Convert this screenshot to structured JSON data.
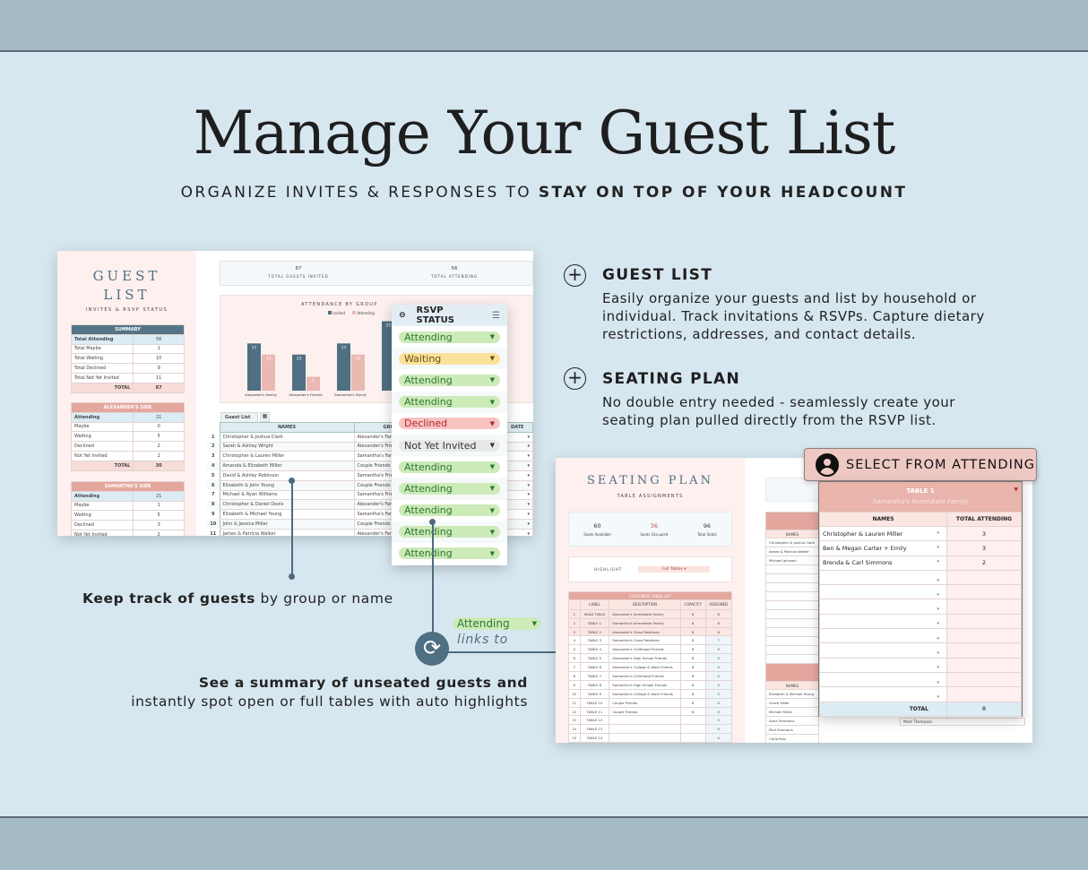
{
  "header": {
    "title": "Manage Your Guest List",
    "subtitle_plain": "ORGANIZE INVITES & RESPONSES TO ",
    "subtitle_bold": "STAY ON TOP OF YOUR HEADCOUNT"
  },
  "guest_list": {
    "title1": "GUEST",
    "title2": "LIST",
    "subtitle": "INVITES & RSVP STATUS",
    "summary": {
      "title": "SUMMARY",
      "rows": [
        [
          "Total Attending",
          "56"
        ],
        [
          "Total Maybe",
          "1"
        ],
        [
          "Total Waiting",
          "10"
        ],
        [
          "Total Declined",
          "9"
        ],
        [
          "Total Not Yet Invited",
          "11"
        ]
      ],
      "total_label": "TOTAL",
      "total": "87"
    },
    "alex": {
      "title": "ALEXANDER'S SIDE",
      "rows": [
        [
          "Attending",
          "21"
        ],
        [
          "Maybe",
          "0"
        ],
        [
          "Waiting",
          "5"
        ],
        [
          "Declined",
          "2"
        ],
        [
          "Not Yet Invited",
          "2"
        ]
      ],
      "total_label": "TOTAL",
      "total": "30"
    },
    "sam": {
      "title": "SAMANTHA'S SIDE",
      "rows": [
        [
          "Attending",
          "21"
        ],
        [
          "Maybe",
          "1"
        ],
        [
          "Waiting",
          "5"
        ],
        [
          "Declined",
          "3"
        ],
        [
          "Not Yet Invited",
          "2"
        ]
      ]
    },
    "kpi": [
      {
        "value": "87",
        "label": "TOTAL GUESTS INVITED"
      },
      {
        "value": "56",
        "label": "TOTAL ATTENDING"
      }
    ],
    "chart": {
      "title": "ATTENDANCE BY GROUP",
      "legend": [
        "Invited",
        "Attending"
      ],
      "colors": [
        "#4f6f82",
        "#eab9b2"
      ],
      "categories": [
        "Alexander's Family",
        "Alexander's Friends",
        "Samantha's Family",
        "Cou"
      ],
      "invited": [
        17,
        13,
        17,
        25
      ],
      "attending": [
        13,
        5,
        13,
        null
      ]
    },
    "tab": "Guest List",
    "columns": [
      "NAMES",
      "GROUP",
      "S",
      "DATE"
    ],
    "rows": [
      [
        "1",
        "Christopher & Joshua Clark",
        "Alexander's Family",
        "Ale"
      ],
      [
        "2",
        "Sarah & Ashley Wright",
        "Alexander's Friends",
        "Ale"
      ],
      [
        "3",
        "Christopher & Lauren Miller",
        "Samantha's Family",
        "Sam"
      ],
      [
        "4",
        "Amanda & Elizabeth Miller",
        "Couple Friends",
        "Cou"
      ],
      [
        "5",
        "David & Ashley Robinson",
        "Samantha's Friends",
        "Sam"
      ],
      [
        "6",
        "Elizabeth & John Young",
        "Couple Friends",
        "Cou"
      ],
      [
        "7",
        "Michael & Ryan Williams",
        "Samantha's Friends",
        "Sam"
      ],
      [
        "8",
        "Christopher & Daniel Davis",
        "Alexander's Family",
        "Ale"
      ],
      [
        "9",
        "Elizabeth & Michael Young",
        "Samantha's Family",
        "Sam"
      ],
      [
        "10",
        "John & Jessica Miller",
        "Couple Friends",
        "Cou"
      ],
      [
        "11",
        "James & Patricia Walker",
        "Alexander's Family",
        "Ale"
      ]
    ]
  },
  "rsvp": {
    "title": "RSVP STATUS",
    "items": [
      {
        "label": "Attending",
        "bg": "#cdeab9",
        "fg": "#2c7a2c"
      },
      {
        "label": "Waiting",
        "bg": "#fbe29a",
        "fg": "#6b5310"
      },
      {
        "label": "Attending",
        "bg": "#cdeab9",
        "fg": "#2c7a2c"
      },
      {
        "label": "Attending",
        "bg": "#cdeab9",
        "fg": "#2c7a2c"
      },
      {
        "label": "Declined",
        "bg": "#f7c4c2",
        "fg": "#b3262a"
      },
      {
        "label": "Not Yet Invited",
        "bg": "#e9e9ec",
        "fg": "#333"
      },
      {
        "label": "Attending",
        "bg": "#cdeab9",
        "fg": "#2c7a2c"
      },
      {
        "label": "Attending",
        "bg": "#cdeab9",
        "fg": "#2c7a2c"
      },
      {
        "label": "Attending",
        "bg": "#cdeab9",
        "fg": "#2c7a2c"
      },
      {
        "label": "Attending",
        "bg": "#cdeab9",
        "fg": "#2c7a2c"
      },
      {
        "label": "Attending",
        "bg": "#cdeab9",
        "fg": "#2c7a2c"
      }
    ]
  },
  "features": [
    {
      "title": "GUEST LIST",
      "lines": [
        "Easily organize your guests and list by household or",
        "individual. Track invitations & RSVPs. Capture dietary",
        "restrictions, addresses, and contact details."
      ]
    },
    {
      "title": "SEATING PLAN",
      "lines": [
        "No double entry needed - seamlessly create your",
        "seating plan pulled directly from the RSVP list."
      ]
    }
  ],
  "annotations": {
    "keep_bold": "Keep track of guests",
    "keep_rest": " by group or name",
    "chip": "Attending",
    "links_to": "links to",
    "summary_bold": "See a summary of unseated guests and",
    "summary_rest": "instantly spot open or full tables with auto highlights"
  },
  "seating": {
    "title": "SEATING PLAN",
    "subtitle": "TABLE ASSIGNMENTS",
    "stats": [
      {
        "value": "60",
        "label": "Seats Available"
      },
      {
        "value": "36",
        "label": "Seats Occupied"
      },
      {
        "value": "96",
        "label": "Total Seats"
      }
    ],
    "highlight_label": "HIGHLIGHT",
    "highlight_value": "Full Tables",
    "list_title": "CUSTOMIZE TABLE LIST",
    "columns": [
      "LABEL",
      "DESCRIPTION",
      "CAPACITY",
      "ASSIGNED"
    ],
    "rows": [
      [
        "1",
        "HEAD TABLE",
        "Alexander's Immediate Family",
        "8",
        "8"
      ],
      [
        "2",
        "TABLE 1",
        "Samantha's Immediate Family",
        "8",
        "8"
      ],
      [
        "3",
        "TABLE 2",
        "Alexander's Close Relatives",
        "8",
        "8"
      ],
      [
        "4",
        "TABLE 3",
        "Samantha's Close Relatives",
        "8",
        "7"
      ],
      [
        "5",
        "TABLE 4",
        "Alexander's Childhood Friends",
        "8",
        "5"
      ],
      [
        "6",
        "TABLE 5",
        "Alexander's High School Friends",
        "8",
        "0"
      ],
      [
        "7",
        "TABLE 6",
        "Alexander's College & Work Friends",
        "8",
        "0"
      ],
      [
        "8",
        "TABLE 7",
        "Samantha's Childhood Friends",
        "8",
        "0"
      ],
      [
        "9",
        "TABLE 8",
        "Samantha's High School Friends",
        "8",
        "0"
      ],
      [
        "10",
        "TABLE 9",
        "Samantha's College & Work Friends",
        "8",
        "0"
      ],
      [
        "11",
        "TABLE 10",
        "Couple Friends",
        "8",
        "0"
      ],
      [
        "12",
        "TABLE 11",
        "Couple Friends",
        "8",
        "0"
      ],
      [
        "13",
        "TABLE 12",
        "",
        "",
        "0"
      ],
      [
        "14",
        "TABLE 13",
        "",
        "",
        "0"
      ],
      [
        "15",
        "TABLE 14",
        "",
        "",
        "0"
      ]
    ],
    "head_names": [
      "Christopher & Joshua Clark",
      "James & Patricia Walker",
      "Michael Johnson"
    ],
    "t2_names": [
      "Elizabeth & Michael Young",
      "Grace Miller",
      "Michael Miller",
      "Anna Simmons",
      "Paul Simmons",
      "Carla Ruiz"
    ],
    "names_label": "NAMES",
    "other_name": "Mark Thompson"
  },
  "select_badge": "SELECT FROM ATTENDING",
  "table1": {
    "title": "TABLE 1",
    "subtitle": "Samantha's Immediate Family",
    "col_names": "NAMES",
    "col_total": "TOTAL ATTENDING",
    "rows": [
      [
        "Christopher & Lauren Miller",
        "3"
      ],
      [
        "Ben & Megan Carter + Emily",
        "3"
      ],
      [
        "Brenda & Carl Simmons",
        "2"
      ],
      [
        "",
        ""
      ],
      [
        "",
        ""
      ],
      [
        "",
        ""
      ],
      [
        "",
        ""
      ],
      [
        "",
        ""
      ],
      [
        "",
        ""
      ],
      [
        "",
        ""
      ],
      [
        "",
        ""
      ],
      [
        "",
        ""
      ]
    ],
    "total_label": "TOTAL",
    "total": "8"
  }
}
